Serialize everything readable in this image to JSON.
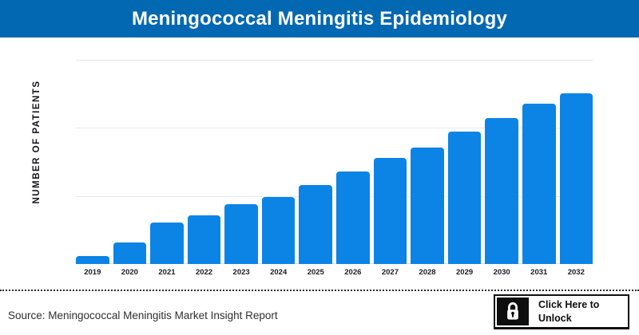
{
  "header": {
    "title": "Meningococcal Meningitis Epidemiology",
    "bg_color": "#0368b2",
    "text_color": "#ffffff"
  },
  "chart_data": {
    "type": "bar",
    "title": "Meningococcal Meningitis Epidemiology",
    "ylabel": "NUMBER OF PATIENTS",
    "xlabel": "",
    "categories": [
      "2019",
      "2020",
      "2021",
      "2022",
      "2023",
      "2024",
      "2025",
      "2026",
      "2027",
      "2028",
      "2029",
      "2030",
      "2031",
      "2032"
    ],
    "values": [
      0.12,
      0.32,
      0.61,
      0.71,
      0.88,
      0.99,
      1.16,
      1.36,
      1.56,
      1.71,
      1.95,
      2.15,
      2.35,
      2.51
    ],
    "value_note": "y-axis shows no numeric tick labels; bar values estimated in gridline units (1 unit = spacing between the light horizontal gridlines)",
    "ylim": [
      0,
      3
    ],
    "yticks_labeled": false,
    "grid": "3 horizontal light-gray gridlines plus baseline, vertical grid off",
    "legend": "none",
    "bar_color": "#0b84e6"
  },
  "footer": {
    "source_text": "Source: Meningococcal Meningitis Market Insight Report",
    "unlock_button": {
      "label_line1": "Click Here to",
      "label_line2": "Unlock",
      "icon": "lock-icon",
      "bg_color": "#ffffff",
      "icon_bg_color": "#0e0e0e",
      "text_color": "#0e0e0e"
    }
  }
}
